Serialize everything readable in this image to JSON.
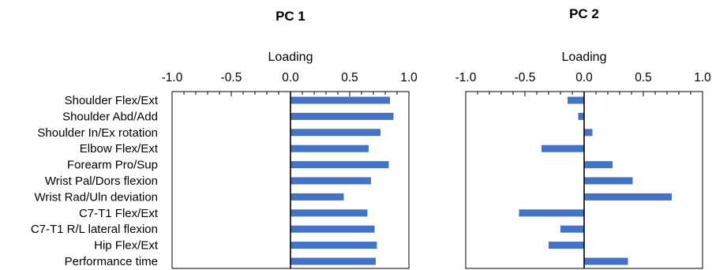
{
  "chart_data": [
    {
      "type": "bar",
      "orientation": "horizontal",
      "title": "PC 1",
      "xlabel": "Loading",
      "xlim": [
        -1.0,
        1.0
      ],
      "ticks": [
        "-1.0",
        "-0.5",
        "0.0",
        "0.5",
        "1.0"
      ],
      "tick_values": [
        -1.0,
        -0.5,
        0.0,
        0.5,
        1.0
      ],
      "bar_color": "#4472C4",
      "categories": [
        "Shoulder Flex/Ext",
        "Shoulder Abd/Add",
        "Shoulder In/Ex rotation",
        "Elbow Flex/Ext",
        "Forearm Pro/Sup",
        "Wrist Pal/Dors flexion",
        "Wrist Rad/Uln deviation",
        "C7-T1 Flex/Ext",
        "C7-T1 R/L lateral flexion",
        "Hip Flex/Ext",
        "Performance time"
      ],
      "values": [
        0.84,
        0.87,
        0.76,
        0.66,
        0.83,
        0.68,
        0.45,
        0.65,
        0.71,
        0.73,
        0.72
      ]
    },
    {
      "type": "bar",
      "orientation": "horizontal",
      "title": "PC 2",
      "xlabel": "Loading",
      "xlim": [
        -1.0,
        1.0
      ],
      "ticks": [
        "-1.0",
        "-0.5",
        "0.0",
        "0.5",
        "1.0"
      ],
      "tick_values": [
        -1.0,
        -0.5,
        0.0,
        0.5,
        1.0
      ],
      "bar_color": "#4472C4",
      "categories": [
        "Shoulder Flex/Ext",
        "Shoulder Abd/Add",
        "Shoulder In/Ex rotation",
        "Elbow Flex/Ext",
        "Forearm Pro/Sup",
        "Wrist Pal/Dors flexion",
        "Wrist Rad/Uln deviation",
        "C7-T1 Flex/Ext",
        "C7-T1 R/L lateral flexion",
        "Hip Flex/Ext",
        "Performance time"
      ],
      "values": [
        -0.14,
        -0.05,
        0.07,
        -0.36,
        0.24,
        0.41,
        0.74,
        -0.55,
        -0.2,
        -0.3,
        0.37
      ]
    }
  ]
}
